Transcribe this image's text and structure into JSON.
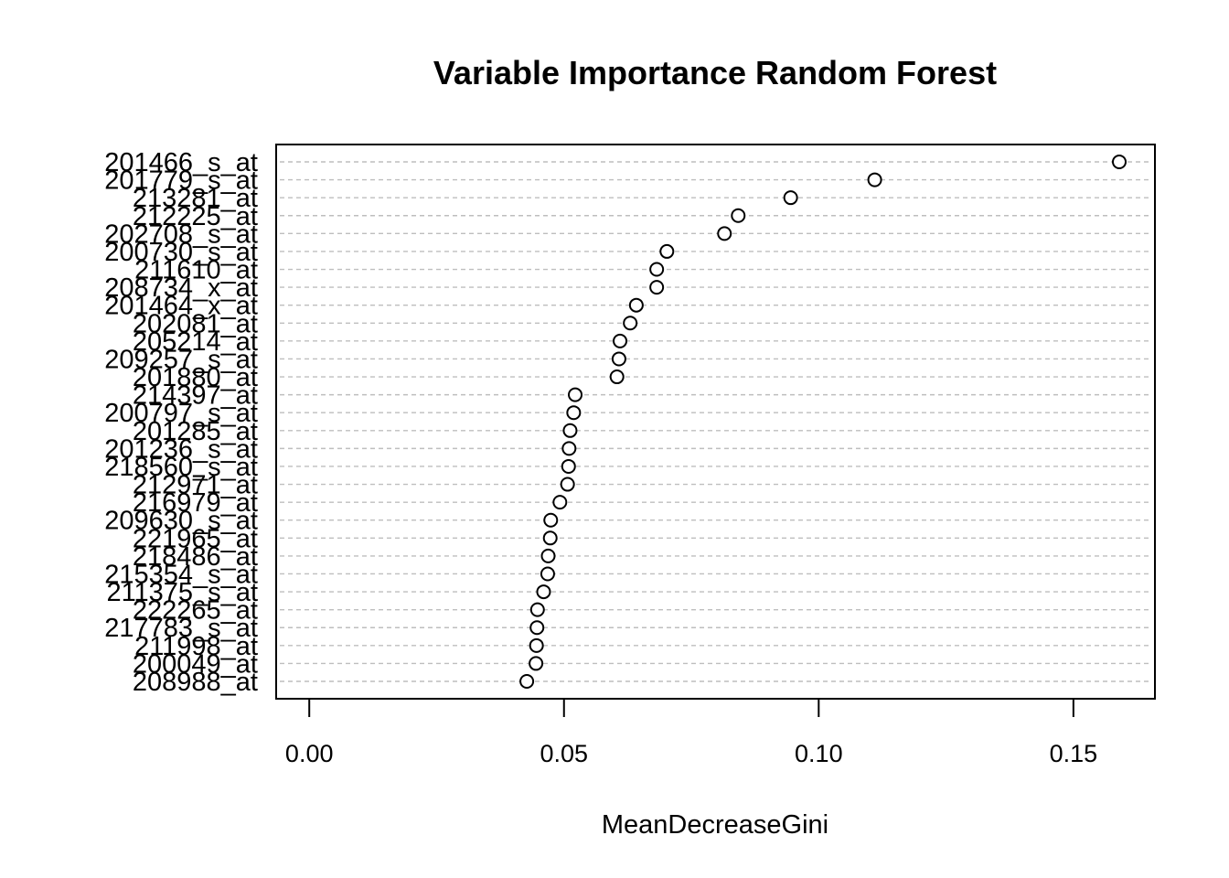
{
  "chart_data": {
    "type": "scatter",
    "title": "Variable Importance Random Forest",
    "xlabel": "MeanDecreaseGini",
    "ylabel": "",
    "xlim": [
      -0.0065,
      0.166
    ],
    "xticks": [
      0.0,
      0.05,
      0.1,
      0.15
    ],
    "xtick_labels": [
      "0.00",
      "0.05",
      "0.10",
      "0.15"
    ],
    "grid": "horizontal dashed",
    "legend": "none",
    "categories": [
      "201466_s_at",
      "201779_s_at",
      "213281_at",
      "212225_at",
      "202708_s_at",
      "200730_s_at",
      "211610_at",
      "208734_x_at",
      "201464_x_at",
      "202081_at",
      "205214_at",
      "209257_s_at",
      "201880_at",
      "214397_at",
      "200797_s_at",
      "201285_at",
      "201236_s_at",
      "218560_s_at",
      "212971_at",
      "216979_at",
      "209630_s_at",
      "221965_at",
      "218486_at",
      "215354_s_at",
      "211375_s_at",
      "222265_at",
      "217783_s_at",
      "211998_at",
      "200049_at",
      "208988_at"
    ],
    "values": [
      0.159,
      0.111,
      0.0945,
      0.0842,
      0.0815,
      0.0702,
      0.0682,
      0.0682,
      0.0642,
      0.063,
      0.061,
      0.0608,
      0.0604,
      0.0522,
      0.0519,
      0.0512,
      0.051,
      0.0509,
      0.0507,
      0.0492,
      0.0474,
      0.0473,
      0.0469,
      0.0468,
      0.046,
      0.0448,
      0.0447,
      0.0446,
      0.0445,
      0.0427
    ]
  }
}
